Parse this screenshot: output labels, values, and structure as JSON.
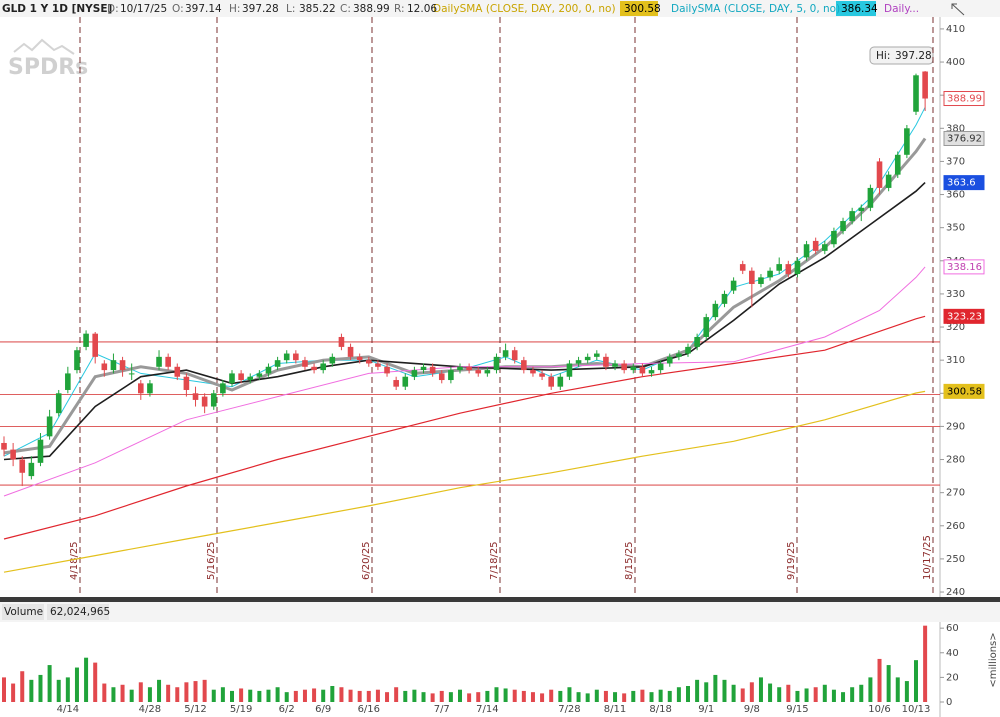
{
  "chart_data": {
    "type": "candlestick",
    "symbol": "GLD 1 Y 1D [NYSE]",
    "readout_labels": [
      "D:",
      "O:",
      "H:",
      "L:",
      "C:",
      "R:"
    ],
    "range": 12.06,
    "more_study": "Daily...",
    "hi_label": "Hi:",
    "watermark": "SPDRs",
    "categories": [
      null,
      null,
      null,
      null,
      null,
      null,
      null,
      "4/14",
      null,
      null,
      null,
      null,
      null,
      null,
      null,
      null,
      "4/28",
      null,
      null,
      null,
      null,
      "5/12",
      null,
      null,
      null,
      null,
      "5/19",
      null,
      null,
      null,
      null,
      "6/2",
      null,
      null,
      null,
      "6/9",
      null,
      null,
      null,
      null,
      "6/16",
      null,
      null,
      null,
      null,
      null,
      null,
      null,
      "7/7",
      null,
      null,
      null,
      null,
      "7/14",
      null,
      null,
      null,
      null,
      null,
      null,
      null,
      null,
      "7/28",
      null,
      null,
      null,
      null,
      "8/11",
      null,
      null,
      null,
      null,
      "8/18",
      null,
      null,
      null,
      null,
      "9/1",
      null,
      null,
      null,
      null,
      "9/8",
      null,
      null,
      null,
      null,
      "9/15",
      null,
      null,
      null,
      null,
      null,
      null,
      null,
      null,
      "10/6",
      null,
      null,
      null,
      "10/13",
      null
    ],
    "candles": [
      [
        285,
        287,
        281,
        283
      ],
      [
        283,
        285,
        278,
        280
      ],
      [
        280,
        281,
        272,
        276
      ],
      [
        275,
        281,
        274,
        279
      ],
      [
        279,
        288,
        278,
        286
      ],
      [
        287,
        295,
        286,
        293
      ],
      [
        294,
        301,
        293,
        300
      ],
      [
        301,
        308,
        300,
        306
      ],
      [
        307,
        314,
        306,
        313
      ],
      [
        314,
        319,
        313,
        318
      ],
      [
        318,
        318.5,
        309,
        311
      ],
      [
        309,
        310,
        305,
        307
      ],
      [
        307,
        312,
        306,
        310
      ],
      [
        310,
        311,
        305,
        307
      ],
      [
        306,
        309,
        304,
        306
      ],
      [
        303,
        304,
        298,
        300
      ],
      [
        300,
        304,
        299,
        303
      ],
      [
        308,
        313,
        307,
        311
      ],
      [
        311,
        312,
        307,
        308
      ],
      [
        308,
        309,
        304,
        305
      ],
      [
        305,
        306,
        299,
        301
      ],
      [
        300,
        302,
        296,
        298
      ],
      [
        299,
        300,
        294,
        296
      ],
      [
        296,
        301,
        295,
        300
      ],
      [
        300,
        304,
        299,
        303
      ],
      [
        303,
        307,
        302,
        306
      ],
      [
        306,
        307,
        303,
        304
      ],
      [
        304,
        306,
        303,
        305
      ],
      [
        305,
        307,
        304,
        306
      ],
      [
        306,
        309,
        305,
        308
      ],
      [
        308,
        311,
        307,
        310
      ],
      [
        310,
        313,
        309,
        312
      ],
      [
        312,
        313,
        309,
        310
      ],
      [
        310,
        311,
        307,
        308
      ],
      [
        308,
        309,
        306,
        307
      ],
      [
        307,
        310,
        306,
        309
      ],
      [
        309,
        312,
        308,
        311
      ],
      [
        317,
        318,
        313,
        314
      ],
      [
        314,
        315,
        310,
        311
      ],
      [
        311,
        312,
        309,
        310
      ],
      [
        310,
        311,
        308,
        309
      ],
      [
        309,
        310,
        307,
        308
      ],
      [
        308,
        309,
        305,
        306
      ],
      [
        304,
        305,
        301,
        302
      ],
      [
        302,
        306,
        301,
        305
      ],
      [
        305,
        308,
        304,
        307
      ],
      [
        307,
        309,
        306,
        308
      ],
      [
        308,
        309,
        305,
        306
      ],
      [
        306,
        307,
        303,
        304
      ],
      [
        304,
        308,
        303,
        307
      ],
      [
        307,
        309,
        306,
        308
      ],
      [
        308,
        309,
        306,
        307
      ],
      [
        307,
        308,
        305,
        306
      ],
      [
        306,
        308,
        305,
        307
      ],
      [
        307,
        312,
        306,
        311
      ],
      [
        311,
        315,
        310,
        313
      ],
      [
        313,
        314,
        309,
        310
      ],
      [
        310,
        311,
        306,
        307
      ],
      [
        307,
        308,
        305,
        306
      ],
      [
        306,
        307,
        304,
        305
      ],
      [
        305,
        306,
        301,
        302
      ],
      [
        302,
        306,
        301,
        305
      ],
      [
        305,
        310,
        304,
        309
      ],
      [
        309,
        311,
        308,
        310
      ],
      [
        310,
        312,
        309,
        311
      ],
      [
        311,
        313,
        310,
        312
      ],
      [
        311,
        312,
        307,
        308
      ],
      [
        308,
        310,
        307,
        309
      ],
      [
        309,
        310,
        306,
        307
      ],
      [
        307,
        309,
        306,
        308
      ],
      [
        308,
        309,
        305,
        306
      ],
      [
        306,
        308,
        305,
        307
      ],
      [
        307,
        310,
        306,
        309
      ],
      [
        309,
        312,
        308,
        311
      ],
      [
        311,
        313,
        310,
        312
      ],
      [
        312,
        315,
        311,
        314
      ],
      [
        314,
        318,
        313,
        317
      ],
      [
        317,
        324,
        316,
        323
      ],
      [
        323,
        328,
        322,
        327
      ],
      [
        327,
        331,
        326,
        330
      ],
      [
        331,
        335,
        330,
        334
      ],
      [
        339,
        340,
        336,
        337
      ],
      [
        337,
        338,
        326,
        333
      ],
      [
        333,
        336,
        332,
        335
      ],
      [
        335,
        338,
        334,
        337
      ],
      [
        337,
        341,
        336,
        339
      ],
      [
        339,
        340,
        335,
        336
      ],
      [
        336,
        341,
        335,
        340
      ],
      [
        341,
        346,
        340,
        345
      ],
      [
        346,
        347,
        342,
        343
      ],
      [
        343,
        346,
        342,
        345
      ],
      [
        345,
        350,
        344,
        349
      ],
      [
        349,
        353,
        348,
        352
      ],
      [
        352,
        356,
        351,
        355
      ],
      [
        355,
        357,
        352,
        356
      ],
      [
        356,
        363,
        355,
        362
      ],
      [
        370,
        371,
        360,
        362
      ],
      [
        362,
        367,
        361,
        366
      ],
      [
        366,
        373,
        365,
        372
      ],
      [
        372,
        381,
        371,
        380
      ],
      [
        385,
        396.5,
        384,
        396
      ],
      [
        397.14,
        397.28,
        385.22,
        388.99
      ]
    ],
    "up_color": "#20a33a",
    "down_color": "#e2484d",
    "ylim": [
      238.5,
      413.6
    ],
    "yticks": [
      240,
      250,
      260,
      270,
      280,
      290,
      300,
      310,
      320,
      330,
      340,
      350,
      360,
      370,
      380,
      390,
      400,
      410
    ],
    "levels": [
      315.5,
      299.6,
      290,
      272.3
    ],
    "level_color": "#d42a2a",
    "expiry_markers": [
      "4/18/25",
      "5/16/25",
      "6/20/25",
      "7/18/25",
      "8/15/25",
      "9/19/25",
      "10/17/25"
    ],
    "overlays": [
      {
        "name": "DailySMA (CLOSE, DAY, 200, 0, no)",
        "color": "#e3c01c",
        "x": [
          0,
          10,
          20,
          30,
          40,
          50,
          60,
          70,
          80,
          90,
          100,
          101
        ],
        "values": [
          246,
          251,
          256,
          261,
          266,
          271.5,
          276,
          281,
          285.5,
          292,
          300.1,
          300.58
        ]
      },
      {
        "name": "DailySMA (CLOSE, DAY, 5, 0, no)",
        "color": "#28c8e0",
        "x": [
          0,
          5,
          10,
          15,
          20,
          25,
          30,
          35,
          40,
          45,
          50,
          55,
          60,
          65,
          70,
          75,
          80,
          85,
          90,
          95,
          100,
          101
        ],
        "values": [
          281,
          288,
          312,
          306,
          304,
          302,
          309,
          310,
          310,
          305,
          307,
          311,
          305,
          310,
          307,
          313,
          332,
          336,
          346,
          359,
          381,
          386.34
        ]
      },
      {
        "color": "#999999",
        "x": [
          0,
          5,
          10,
          15,
          20,
          25,
          30,
          35,
          40,
          45,
          50,
          55,
          60,
          65,
          70,
          75,
          80,
          85,
          90,
          95,
          100,
          101
        ],
        "values": [
          282,
          284,
          305,
          308,
          306,
          301,
          307,
          310,
          311,
          306,
          307,
          308,
          308,
          309,
          308,
          313,
          326,
          334,
          344,
          357,
          373,
          376.92
        ]
      },
      {
        "color": "#1f1f1f",
        "x": [
          0,
          5,
          10,
          15,
          20,
          25,
          30,
          35,
          40,
          50,
          60,
          70,
          75,
          80,
          85,
          90,
          95,
          100,
          101
        ],
        "values": [
          280,
          281,
          296,
          305,
          307,
          303,
          305,
          308,
          310,
          308,
          307,
          308,
          312,
          322,
          333,
          341,
          351,
          361,
          363.6
        ]
      },
      {
        "color": "#f06ee0",
        "x": [
          0,
          10,
          20,
          30,
          40,
          50,
          60,
          70,
          80,
          90,
          96,
          100,
          101
        ],
        "values": [
          269,
          279,
          292,
          299,
          306,
          308,
          308,
          309,
          309.5,
          317,
          325,
          335,
          338.16
        ]
      },
      {
        "color": "#e0262e",
        "x": [
          0,
          10,
          20,
          30,
          40,
          50,
          60,
          70,
          80,
          90,
          100,
          101
        ],
        "values": [
          256,
          263,
          272,
          280,
          287,
          294,
          300,
          305,
          309,
          313,
          322.5,
          323.23
        ]
      }
    ],
    "volume_title": "Volume",
    "volume_readout": "62,024,965",
    "volume_unit": "<millions>",
    "volume": [
      20,
      15,
      25,
      18,
      22,
      30,
      18,
      20,
      28,
      36,
      32,
      15,
      12,
      14,
      10,
      16,
      12,
      18,
      14,
      12,
      16,
      17,
      18,
      10,
      12,
      9,
      11,
      10,
      9,
      10,
      12,
      8,
      9,
      10,
      11,
      10,
      13,
      12,
      10,
      9,
      9,
      10,
      8,
      12,
      9,
      10,
      8,
      7,
      9,
      8,
      10,
      7,
      8,
      9,
      12,
      11,
      10,
      9,
      8,
      7,
      10,
      9,
      12,
      8,
      7,
      10,
      9,
      8,
      7,
      9,
      10,
      8,
      10,
      9,
      12,
      13,
      18,
      16,
      22,
      18,
      14,
      11,
      16,
      20,
      15,
      12,
      14,
      9,
      11,
      12,
      14,
      10,
      8,
      12,
      14,
      20,
      35,
      30,
      20,
      17,
      34,
      62.02
    ],
    "volume_ylim": [
      0,
      65
    ],
    "volume_yticks": [
      0,
      20,
      40,
      60
    ]
  }
}
